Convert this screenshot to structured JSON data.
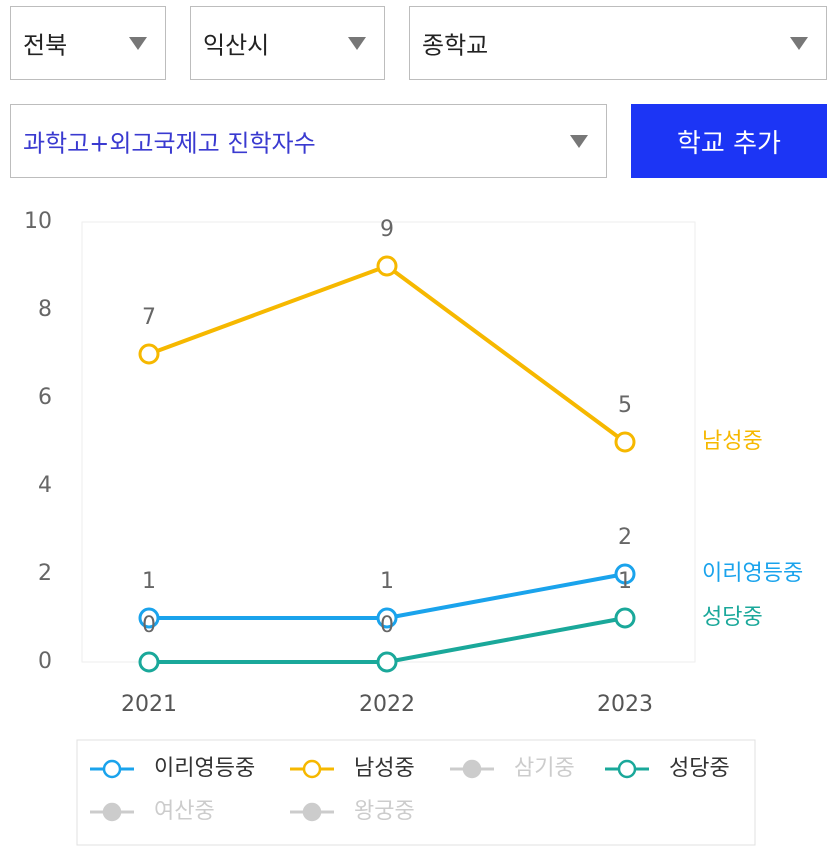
{
  "filters": {
    "region": "전북",
    "city": "익산시",
    "school_level": "종학교",
    "metric": "과학고+외고국제고 진학자수"
  },
  "button": "학교 추가",
  "chart_data": {
    "type": "line",
    "categories": [
      "2021",
      "2022",
      "2023"
    ],
    "ylim": [
      0,
      10
    ],
    "yticks": [
      0,
      2,
      4,
      6,
      8,
      10
    ],
    "grid": false,
    "hidden_color": "#cccccc",
    "series": [
      {
        "name": "이리영등중",
        "color": "#1aa3ec",
        "visible": true,
        "values": [
          1,
          1,
          2
        ]
      },
      {
        "name": "남성중",
        "color": "#f6b800",
        "visible": true,
        "values": [
          7,
          9,
          5
        ]
      },
      {
        "name": "삼기중",
        "color": "#cccccc",
        "visible": false,
        "values": [
          null,
          null,
          null
        ]
      },
      {
        "name": "성당중",
        "color": "#1aa89a",
        "visible": true,
        "values": [
          0,
          0,
          1
        ]
      },
      {
        "name": "여산중",
        "color": "#cccccc",
        "visible": false,
        "values": [
          null,
          null,
          null
        ]
      },
      {
        "name": "왕궁중",
        "color": "#cccccc",
        "visible": false,
        "values": [
          null,
          null,
          null
        ]
      }
    ]
  }
}
